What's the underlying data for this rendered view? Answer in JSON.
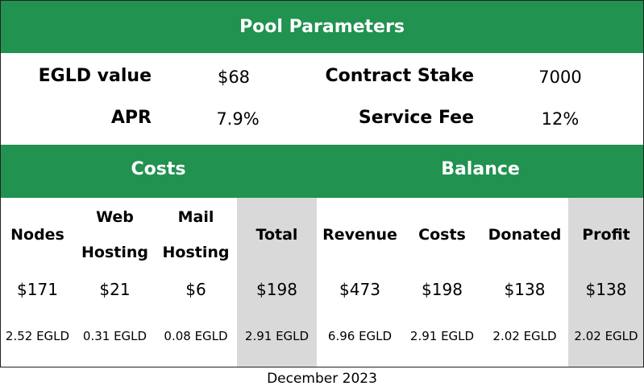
{
  "header": {
    "title": "Pool Parameters"
  },
  "parameters": [
    {
      "label": "EGLD value",
      "value": "$68"
    },
    {
      "label": "Contract Stake",
      "value": "7000"
    },
    {
      "label": "APR",
      "value": "7.9%"
    },
    {
      "label": "Service Fee",
      "value": "12%"
    }
  ],
  "sections": [
    {
      "title": "Costs",
      "columns": [
        {
          "header": "Nodes",
          "usd": "$171",
          "egld": "2.52 EGLD"
        },
        {
          "header": "Web Hosting",
          "usd": "$21",
          "egld": "0.31 EGLD"
        },
        {
          "header": "Mail Hosting",
          "usd": "$6",
          "egld": "0.08 EGLD"
        },
        {
          "header": "Total",
          "usd": "$198",
          "egld": "2.91 EGLD",
          "highlight": true
        }
      ]
    },
    {
      "title": "Balance",
      "columns": [
        {
          "header": "Revenue",
          "usd": "$473",
          "egld": "6.96 EGLD"
        },
        {
          "header": "Costs",
          "usd": "$198",
          "egld": "2.91 EGLD"
        },
        {
          "header": "Donated",
          "usd": "$138",
          "egld": "2.02 EGLD"
        },
        {
          "header": "Profit",
          "usd": "$138",
          "egld": "2.02 EGLD",
          "highlight": true
        }
      ]
    }
  ],
  "footer": "December 2023"
}
